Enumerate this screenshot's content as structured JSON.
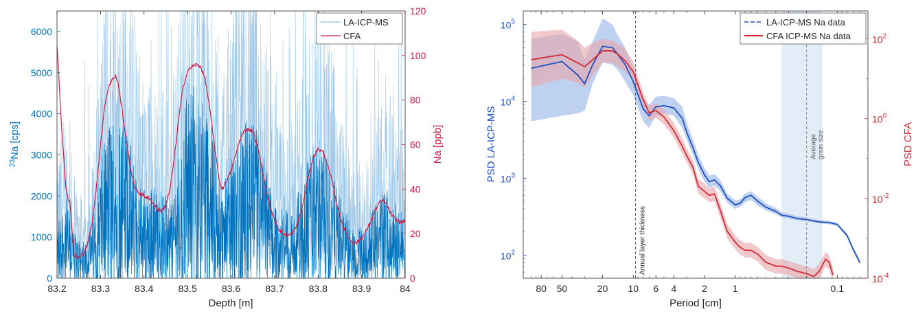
{
  "chart_data": [
    {
      "type": "line",
      "xlabel": "Depth [m]",
      "ylabel_left_prefix": "23",
      "ylabel_left_main": "Na [cps]",
      "ylabel_right": "Na [ppb]",
      "xlim": [
        83.2,
        84
      ],
      "ylim_left": [
        0,
        6500
      ],
      "ylim_right": [
        0,
        120
      ],
      "x_ticks": [
        "83.2",
        "83.3",
        "83.4",
        "83.5",
        "83.6",
        "83.7",
        "83.8",
        "83.9",
        "84"
      ],
      "y_left_ticks": [
        "0",
        "1000",
        "2000",
        "3000",
        "4000",
        "5000",
        "6000"
      ],
      "y_right_ticks": [
        "0",
        "20",
        "40",
        "60",
        "80",
        "100",
        "120"
      ],
      "legend": [
        "LA-ICP-MS",
        "CFA"
      ],
      "legend_position": "top-right",
      "colors": {
        "la": "#0072bd",
        "la_light": "#9ec9ea",
        "cfa": "#d01c44",
        "right_axis": "#d01c44",
        "left_axis": "#0072bd"
      },
      "series": [
        {
          "name": "CFA",
          "axis": "right",
          "x": [
            83.2,
            83.205,
            83.21,
            83.215,
            83.22,
            83.225,
            83.23,
            83.235,
            83.24,
            83.25,
            83.26,
            83.27,
            83.28,
            83.29,
            83.3,
            83.31,
            83.32,
            83.33,
            83.335,
            83.34,
            83.35,
            83.36,
            83.37,
            83.38,
            83.39,
            83.4,
            83.41,
            83.42,
            83.43,
            83.44,
            83.45,
            83.46,
            83.47,
            83.48,
            83.49,
            83.5,
            83.51,
            83.52,
            83.53,
            83.54,
            83.55,
            83.56,
            83.57,
            83.575,
            83.58,
            83.59,
            83.6,
            83.61,
            83.62,
            83.63,
            83.64,
            83.65,
            83.66,
            83.67,
            83.68,
            83.69,
            83.7,
            83.71,
            83.72,
            83.73,
            83.74,
            83.75,
            83.76,
            83.77,
            83.78,
            83.79,
            83.8,
            83.81,
            83.82,
            83.83,
            83.84,
            83.85,
            83.86,
            83.87,
            83.88,
            83.89,
            83.9,
            83.91,
            83.92,
            83.93,
            83.94,
            83.95,
            83.96,
            83.97,
            83.98,
            83.99,
            84
          ],
          "y": [
            105,
            88,
            70,
            55,
            42,
            36,
            34,
            20,
            10,
            9,
            11,
            15,
            24,
            40,
            60,
            78,
            87,
            90,
            91,
            88,
            75,
            60,
            48,
            40,
            38,
            37,
            36,
            34,
            31,
            30,
            33,
            40,
            55,
            72,
            86,
            93,
            95,
            96,
            95,
            90,
            78,
            62,
            48,
            42,
            40,
            44,
            48,
            55,
            62,
            66,
            67,
            66,
            60,
            50,
            40,
            32,
            26,
            22,
            20,
            19,
            20,
            23,
            29,
            38,
            48,
            55,
            58,
            57,
            52,
            45,
            36,
            28,
            22,
            18,
            16,
            16,
            18,
            21,
            25,
            30,
            34,
            35,
            32,
            28,
            26,
            25,
            26
          ]
        }
      ],
      "la_envelope": {
        "x": [
          83.2,
          83.22,
          83.24,
          83.26,
          83.28,
          83.3,
          83.32,
          83.34,
          83.36,
          83.38,
          83.4,
          83.42,
          83.44,
          83.46,
          83.48,
          83.5,
          83.52,
          83.54,
          83.56,
          83.58,
          83.6,
          83.62,
          83.64,
          83.66,
          83.68,
          83.7,
          83.72,
          83.74,
          83.76,
          83.78,
          83.8,
          83.82,
          83.84,
          83.86,
          83.88,
          83.9,
          83.92,
          83.94,
          83.96,
          83.98,
          84
        ],
        "mean": [
          1100,
          1600,
          900,
          700,
          1000,
          2200,
          3100,
          3400,
          3000,
          2100,
          1800,
          1800,
          1700,
          1500,
          2400,
          3600,
          3900,
          3600,
          2700,
          1700,
          2300,
          2900,
          3100,
          2900,
          2200,
          1500,
          1300,
          1400,
          1800,
          2400,
          2600,
          2400,
          1800,
          1300,
          1000,
          1000,
          1200,
          1600,
          1700,
          1400,
          1300
        ]
      }
    },
    {
      "type": "line",
      "xlabel": "Period [cm]",
      "ylabel_left": "PSD LA-ICP-MS",
      "ylabel_right": "PSD CFA",
      "x_scale": "log-reversed",
      "y_scale": "log",
      "xlim": [
        120,
        0.05
      ],
      "ylim_left": [
        50,
        150000
      ],
      "ylim_right": [
        0.0001,
        500
      ],
      "x_ticks": [
        "80",
        "50",
        "20",
        "10",
        "6",
        "4",
        "2",
        "1",
        "0.1"
      ],
      "x_tick_values": [
        80,
        50,
        20,
        10,
        6,
        4,
        2,
        1,
        0.1
      ],
      "y_left_ticks": [
        {
          "base": "10",
          "exp": "2"
        },
        {
          "base": "10",
          "exp": "3"
        },
        {
          "base": "10",
          "exp": "4"
        },
        {
          "base": "10",
          "exp": "5"
        }
      ],
      "y_left_tick_values": [
        100,
        1000,
        10000,
        100000
      ],
      "y_right_ticks": [
        {
          "base": "10",
          "exp": "-4"
        },
        {
          "base": "10",
          "exp": "-2"
        },
        {
          "base": "10",
          "exp": "0"
        },
        {
          "base": "10",
          "exp": "2"
        }
      ],
      "y_right_tick_values": [
        0.0001,
        0.01,
        1,
        100
      ],
      "legend": [
        "LA-ICP-MS Na data",
        "CFA ICP-MS Na data"
      ],
      "legend_position": "top-right",
      "annotations": [
        {
          "text": "Annual layer thickness",
          "x": 9.5
        },
        {
          "text_line1": "Average",
          "text_line2": "grain size",
          "x": 0.2,
          "band_from": 0.35,
          "band_to": 0.14
        }
      ],
      "colors": {
        "la": "#1f4fbf",
        "la_band": "#a9c2ec",
        "cfa": "#d42a35",
        "cfa_band": "#e8a4a8",
        "grain_band": "#e3edf8",
        "left_axis": "#1f4fbf",
        "right_axis": "#d42a35"
      },
      "series": [
        {
          "name": "LA-ICP-MS Na data",
          "axis": "left",
          "x": [
            100,
            70,
            50,
            35,
            30,
            25,
            20,
            16,
            14,
            12,
            10,
            8,
            7,
            6,
            5,
            4,
            3.3,
            3,
            2.6,
            2.3,
            2,
            1.8,
            1.6,
            1.4,
            1.2,
            1,
            0.9,
            0.8,
            0.7,
            0.6,
            0.5,
            0.4,
            0.35,
            0.3,
            0.25,
            0.2,
            0.15,
            0.12,
            0.1,
            0.08,
            0.07,
            0.06
          ],
          "y": [
            27000,
            30000,
            33000,
            22000,
            17000,
            30000,
            52000,
            50000,
            40000,
            30000,
            18000,
            8000,
            6500,
            8500,
            8800,
            8200,
            6000,
            4000,
            2500,
            1600,
            1100,
            900,
            950,
            800,
            550,
            450,
            470,
            560,
            600,
            500,
            420,
            370,
            330,
            320,
            300,
            290,
            270,
            265,
            250,
            180,
            120,
            80
          ],
          "lo": [
            5500,
            6000,
            6500,
            7000,
            7500,
            17000,
            32000,
            30000,
            25000,
            18000,
            12000,
            5500,
            4500,
            6500,
            7000,
            6500,
            4500,
            3200,
            2000,
            1300,
            900,
            750,
            800,
            680,
            480,
            400,
            420,
            490,
            520,
            440,
            380,
            340,
            310,
            300,
            285,
            275,
            258,
            252,
            240,
            170,
            113,
            75
          ],
          "hi": [
            65000,
            70000,
            75000,
            60000,
            35000,
            60000,
            120000,
            100000,
            70000,
            50000,
            28000,
            11000,
            9000,
            11500,
            11800,
            11000,
            8500,
            5300,
            3200,
            2000,
            1350,
            1080,
            1130,
            950,
            630,
            510,
            530,
            630,
            680,
            570,
            470,
            410,
            360,
            345,
            320,
            308,
            285,
            280,
            262,
            190,
            128,
            86
          ]
        },
        {
          "name": "CFA ICP-MS Na data",
          "axis": "right",
          "x": [
            100,
            70,
            50,
            35,
            30,
            25,
            20,
            16,
            14,
            12,
            10,
            8,
            7,
            6,
            5,
            4,
            3.3,
            3,
            2.6,
            2.3,
            2,
            1.8,
            1.6,
            1.4,
            1.2,
            1,
            0.9,
            0.8,
            0.7,
            0.6,
            0.5,
            0.4,
            0.35,
            0.3,
            0.25,
            0.2,
            0.17,
            0.15,
            0.13,
            0.12,
            0.11
          ],
          "y": [
            30,
            35,
            40,
            25,
            20,
            30,
            50,
            50,
            40,
            28,
            15,
            3,
            1.4,
            1.6,
            1.1,
            0.5,
            0.2,
            0.12,
            0.06,
            0.02,
            0.015,
            0.012,
            0.013,
            0.005,
            0.0015,
            0.0008,
            0.0006,
            0.0005,
            0.0005,
            0.0004,
            0.00025,
            0.0002,
            0.0002,
            0.00018,
            0.00015,
            0.00013,
            0.00011,
            0.00015,
            0.0003,
            0.00025,
            0.00012
          ],
          "lo": [
            6,
            8,
            10,
            8,
            6,
            12,
            25,
            25,
            20,
            15,
            9,
            1.9,
            0.9,
            1.05,
            0.72,
            0.33,
            0.13,
            0.08,
            0.04,
            0.013,
            0.01,
            0.008,
            0.0085,
            0.0033,
            0.001,
            0.00053,
            0.0004,
            0.00033,
            0.00033,
            0.00026,
            0.00016,
            0.00013,
            0.00013,
            0.00012,
            0.0001,
            8.5e-05,
            7.2e-05,
            0.0001,
            0.0002,
            0.00016,
            8e-05
          ],
          "hi": [
            150,
            160,
            170,
            90,
            60,
            80,
            100,
            90,
            75,
            55,
            26,
            4.6,
            2.1,
            2.4,
            1.7,
            0.78,
            0.31,
            0.18,
            0.09,
            0.031,
            0.023,
            0.018,
            0.02,
            0.0077,
            0.0023,
            0.0012,
            0.0009,
            0.00077,
            0.00077,
            0.0006,
            0.00038,
            0.0003,
            0.0003,
            0.00027,
            0.00023,
            0.0002,
            0.00017,
            0.00023,
            0.00046,
            0.00038,
            0.00018
          ]
        }
      ]
    }
  ]
}
